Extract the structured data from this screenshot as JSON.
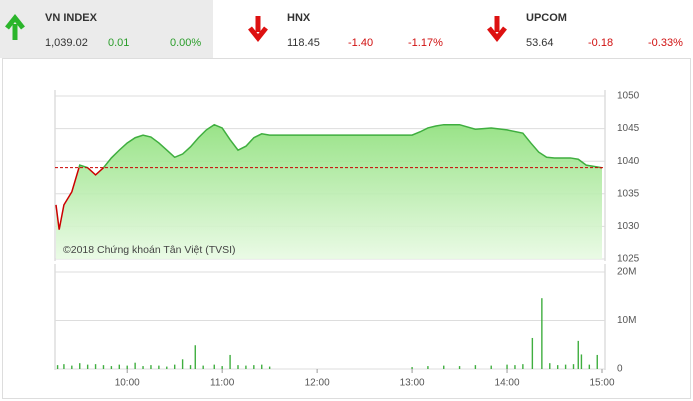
{
  "header": {
    "indices": [
      {
        "name": "VN INDEX",
        "value": "1,039.02",
        "change": "0.01",
        "percent": "0.00%",
        "direction": "up"
      },
      {
        "name": "HNX",
        "value": "118.45",
        "change": "-1.40",
        "percent": "-1.17%",
        "direction": "down"
      },
      {
        "name": "UPCOM",
        "value": "53.64",
        "change": "-0.18",
        "percent": "-0.33%",
        "direction": "down"
      }
    ]
  },
  "chart_data": [
    {
      "type": "area",
      "annotation": "©2018 Chứng khoán Tân Việt (TVSI)",
      "x": [
        555,
        557,
        560,
        565,
        570,
        575,
        580,
        585,
        590,
        595,
        600,
        605,
        610,
        615,
        620,
        625,
        630,
        635,
        640,
        645,
        650,
        655,
        660,
        665,
        670,
        675,
        680,
        685,
        690,
        780,
        785,
        790,
        795,
        800,
        810,
        820,
        830,
        840,
        850,
        855,
        860,
        865,
        870,
        880,
        885,
        890,
        900
      ],
      "values": [
        1033.3,
        1029.5,
        1033.3,
        1035.3,
        1039.4,
        1039.0,
        1037.9,
        1039.0,
        1040.5,
        1041.7,
        1042.8,
        1043.6,
        1044.0,
        1043.7,
        1042.8,
        1041.7,
        1040.6,
        1041.1,
        1042.2,
        1043.6,
        1044.8,
        1045.6,
        1045.1,
        1043.3,
        1041.7,
        1042.3,
        1043.6,
        1044.2,
        1044.0,
        1044.0,
        1044.5,
        1045.1,
        1045.4,
        1045.6,
        1045.6,
        1044.9,
        1045.1,
        1044.8,
        1044.3,
        1042.8,
        1041.4,
        1040.6,
        1040.5,
        1040.5,
        1040.3,
        1039.4,
        1039.0
      ],
      "reference": 1039.01,
      "color": "#3fae3f",
      "down_color": "#cc0000",
      "fill": "#9be58a",
      "xlim": [
        555,
        900
      ],
      "ylim": [
        1025,
        1050
      ],
      "yticks": [
        1025,
        1030,
        1035,
        1040,
        1045,
        1050
      ],
      "grid": true
    },
    {
      "type": "bar",
      "x": [
        556,
        560,
        565,
        570,
        575,
        580,
        585,
        590,
        595,
        600,
        605,
        610,
        615,
        620,
        625,
        630,
        635,
        640,
        643,
        648,
        655,
        660,
        665,
        670,
        675,
        680,
        685,
        690,
        780,
        790,
        800,
        810,
        820,
        830,
        840,
        845,
        850,
        856,
        862,
        867,
        872,
        877,
        882,
        885,
        887,
        892,
        897
      ],
      "values": [
        800000,
        1000000,
        700000,
        1200000,
        900000,
        1000000,
        800000,
        600000,
        900000,
        700000,
        1300000,
        600000,
        800000,
        700000,
        500000,
        900000,
        2000000,
        800000,
        4900000,
        700000,
        900000,
        600000,
        2900000,
        800000,
        700000,
        800000,
        900000,
        500000,
        400000,
        600000,
        700000,
        600000,
        800000,
        700000,
        900000,
        800000,
        1000000,
        6400000,
        14600000,
        1200000,
        800000,
        900000,
        1000000,
        5800000,
        3000000,
        900000,
        2900000
      ],
      "color": "#3fae3f",
      "xlim": [
        555,
        900
      ],
      "xticks": [
        {
          "value": 600,
          "label": "10:00"
        },
        {
          "value": 660,
          "label": "11:00"
        },
        {
          "value": 720,
          "label": "12:00"
        },
        {
          "value": 780,
          "label": "13:00"
        },
        {
          "value": 840,
          "label": "14:00"
        },
        {
          "value": 900,
          "label": "15:00"
        }
      ],
      "ylim": [
        0,
        20000000
      ],
      "yticks": [
        0,
        {
          "value": 10000000,
          "label": "10M"
        },
        {
          "value": 20000000,
          "label": "20M"
        }
      ],
      "grid": true
    }
  ]
}
